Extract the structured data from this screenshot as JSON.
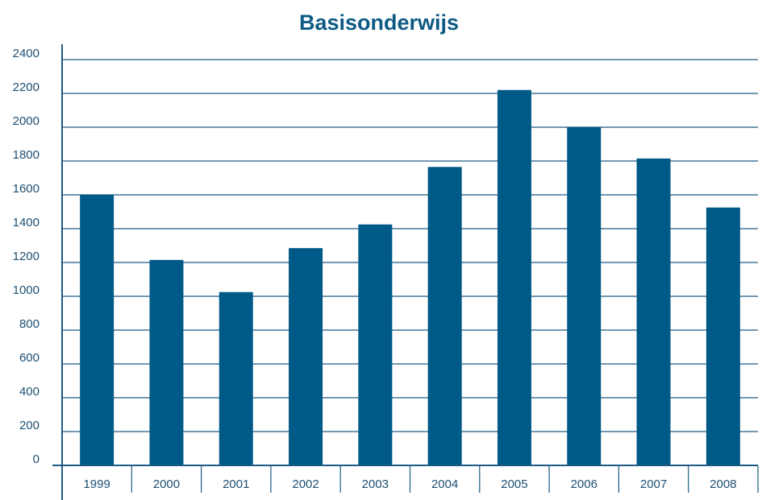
{
  "chart_data": {
    "type": "bar",
    "title": "Basisonderwijs",
    "categories": [
      "1999",
      "2000",
      "2001",
      "2002",
      "2003",
      "2004",
      "2005",
      "2006",
      "2007",
      "2008"
    ],
    "values": [
      1600,
      1215,
      1025,
      1285,
      1425,
      1765,
      2220,
      2000,
      1815,
      1525
    ],
    "color": "#005a87",
    "ylim": [
      0,
      2400
    ],
    "yticks": [
      0,
      200,
      400,
      600,
      800,
      1000,
      1200,
      1400,
      1600,
      1800,
      2000,
      2200,
      2400
    ],
    "grid": true
  }
}
